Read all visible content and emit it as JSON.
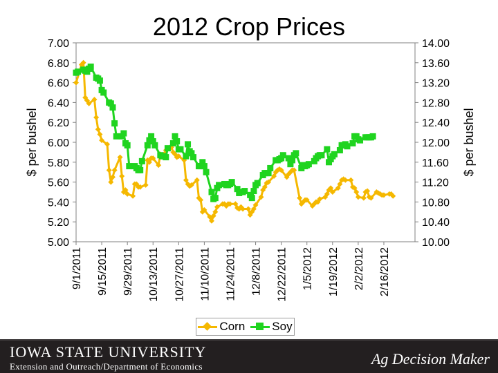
{
  "chart_data": {
    "type": "line",
    "title": "2012 Crop Prices",
    "ylabel_left": "$ per bushel",
    "ylabel_right": "$ per bushel",
    "ylim_left": [
      5.0,
      7.0
    ],
    "ylim_right": [
      10.0,
      14.0
    ],
    "yticks_left": [
      "7.00",
      "6.80",
      "6.60",
      "6.40",
      "6.20",
      "6.00",
      "5.80",
      "5.60",
      "5.40",
      "5.20",
      "5.00"
    ],
    "yticks_right": [
      "14.00",
      "13.60",
      "13.20",
      "12.80",
      "12.40",
      "12.00",
      "11.60",
      "11.20",
      "10.80",
      "10.40",
      "10.00"
    ],
    "x_tick_labels": [
      "9/1/2011",
      "9/15/2011",
      "9/29/2011",
      "10/13/2011",
      "10/27/2011",
      "11/10/2011",
      "11/24/2011",
      "12/8/2011",
      "12/22/2011",
      "1/5/2012",
      "1/19/2012",
      "2/2/2012",
      "2/16/2012"
    ],
    "x_range_days": [
      0,
      185
    ],
    "grid": false,
    "legend": "bottom",
    "series": [
      {
        "name": "Corn",
        "axis": "left",
        "color": "#f5b800",
        "marker": "diamond",
        "points": [
          [
            0,
            6.6
          ],
          [
            3,
            6.78
          ],
          [
            4,
            6.8
          ],
          [
            5,
            6.45
          ],
          [
            6,
            6.42
          ],
          [
            7,
            6.39
          ],
          [
            10,
            6.43
          ],
          [
            11,
            6.25
          ],
          [
            12,
            6.13
          ],
          [
            13,
            6.08
          ],
          [
            14,
            6.02
          ],
          [
            17,
            5.98
          ],
          [
            18,
            5.72
          ],
          [
            19,
            5.6
          ],
          [
            20,
            5.65
          ],
          [
            21,
            5.72
          ],
          [
            24,
            5.85
          ],
          [
            25,
            5.66
          ],
          [
            26,
            5.5
          ],
          [
            27,
            5.52
          ],
          [
            28,
            5.48
          ],
          [
            31,
            5.46
          ],
          [
            32,
            5.58
          ],
          [
            33,
            5.58
          ],
          [
            34,
            5.55
          ],
          [
            35,
            5.55
          ],
          [
            38,
            5.57
          ],
          [
            39,
            5.82
          ],
          [
            40,
            5.8
          ],
          [
            41,
            5.84
          ],
          [
            42,
            5.84
          ],
          [
            45,
            5.77
          ],
          [
            46,
            5.88
          ],
          [
            47,
            5.86
          ],
          [
            48,
            5.88
          ],
          [
            49,
            5.92
          ],
          [
            52,
            5.95
          ],
          [
            53,
            5.9
          ],
          [
            54,
            5.88
          ],
          [
            55,
            5.85
          ],
          [
            56,
            5.86
          ],
          [
            59,
            5.82
          ],
          [
            60,
            5.62
          ],
          [
            61,
            5.58
          ],
          [
            62,
            5.56
          ],
          [
            63,
            5.57
          ],
          [
            66,
            5.62
          ],
          [
            67,
            5.44
          ],
          [
            68,
            5.42
          ],
          [
            69,
            5.3
          ],
          [
            70,
            5.32
          ],
          [
            73,
            5.25
          ],
          [
            74,
            5.21
          ],
          [
            75,
            5.26
          ],
          [
            76,
            5.3
          ],
          [
            77,
            5.35
          ],
          [
            80,
            5.38
          ],
          [
            81,
            5.38
          ],
          [
            82,
            5.36
          ],
          [
            83,
            5.38
          ],
          [
            84,
            5.38
          ],
          [
            87,
            5.38
          ],
          [
            88,
            5.34
          ],
          [
            89,
            5.33
          ],
          [
            90,
            5.35
          ],
          [
            91,
            5.33
          ],
          [
            94,
            5.33
          ],
          [
            95,
            5.27
          ],
          [
            96,
            5.3
          ],
          [
            97,
            5.33
          ],
          [
            98,
            5.37
          ],
          [
            101,
            5.45
          ],
          [
            102,
            5.52
          ],
          [
            103,
            5.55
          ],
          [
            104,
            5.59
          ],
          [
            105,
            5.6
          ],
          [
            108,
            5.66
          ],
          [
            109,
            5.7
          ],
          [
            110,
            5.72
          ],
          [
            111,
            5.73
          ],
          [
            112,
            5.72
          ],
          [
            115,
            5.65
          ],
          [
            116,
            5.68
          ],
          [
            117,
            5.7
          ],
          [
            118,
            5.72
          ],
          [
            119,
            5.72
          ],
          [
            122,
            5.44
          ],
          [
            123,
            5.38
          ],
          [
            124,
            5.4
          ],
          [
            125,
            5.42
          ],
          [
            126,
            5.42
          ],
          [
            129,
            5.36
          ],
          [
            130,
            5.38
          ],
          [
            131,
            5.4
          ],
          [
            132,
            5.4
          ],
          [
            133,
            5.43
          ],
          [
            136,
            5.45
          ],
          [
            137,
            5.48
          ],
          [
            138,
            5.52
          ],
          [
            139,
            5.54
          ],
          [
            140,
            5.5
          ],
          [
            143,
            5.54
          ],
          [
            144,
            5.58
          ],
          [
            145,
            5.62
          ],
          [
            146,
            5.63
          ],
          [
            147,
            5.62
          ],
          [
            150,
            5.62
          ],
          [
            151,
            5.55
          ],
          [
            152,
            5.54
          ],
          [
            153,
            5.5
          ],
          [
            154,
            5.45
          ],
          [
            157,
            5.44
          ],
          [
            158,
            5.5
          ],
          [
            159,
            5.51
          ],
          [
            160,
            5.45
          ],
          [
            161,
            5.44
          ],
          [
            164,
            5.5
          ],
          [
            165,
            5.49
          ],
          [
            166,
            5.48
          ],
          [
            167,
            5.47
          ],
          [
            168,
            5.47
          ],
          [
            171,
            5.48
          ],
          [
            172,
            5.48
          ],
          [
            173,
            5.46
          ]
        ]
      },
      {
        "name": "Soy",
        "axis": "right",
        "color": "#1fd41f",
        "marker": "square",
        "points": [
          [
            0,
            13.4
          ],
          [
            1,
            13.42
          ],
          [
            4,
            13.46
          ],
          [
            5,
            13.44
          ],
          [
            6,
            13.42
          ],
          [
            7,
            13.48
          ],
          [
            8,
            13.52
          ],
          [
            11,
            13.3
          ],
          [
            12,
            13.28
          ],
          [
            13,
            13.24
          ],
          [
            14,
            13.05
          ],
          [
            15,
            13.0
          ],
          [
            18,
            12.8
          ],
          [
            19,
            12.78
          ],
          [
            20,
            12.7
          ],
          [
            21,
            12.38
          ],
          [
            22,
            12.12
          ],
          [
            25,
            12.12
          ],
          [
            26,
            12.18
          ],
          [
            27,
            11.98
          ],
          [
            28,
            11.94
          ],
          [
            29,
            11.52
          ],
          [
            32,
            11.52
          ],
          [
            33,
            11.48
          ],
          [
            34,
            11.44
          ],
          [
            35,
            11.44
          ],
          [
            36,
            11.62
          ],
          [
            39,
            11.94
          ],
          [
            40,
            12.04
          ],
          [
            41,
            12.12
          ],
          [
            42,
            12.02
          ],
          [
            43,
            11.94
          ],
          [
            46,
            11.74
          ],
          [
            47,
            11.72
          ],
          [
            48,
            11.72
          ],
          [
            49,
            11.7
          ],
          [
            50,
            11.88
          ],
          [
            53,
            11.98
          ],
          [
            54,
            12.12
          ],
          [
            55,
            12.02
          ],
          [
            56,
            11.86
          ],
          [
            57,
            11.86
          ],
          [
            60,
            11.72
          ],
          [
            61,
            11.96
          ],
          [
            62,
            11.82
          ],
          [
            63,
            11.78
          ],
          [
            64,
            11.7
          ],
          [
            67,
            11.52
          ],
          [
            68,
            11.52
          ],
          [
            69,
            11.6
          ],
          [
            70,
            11.52
          ],
          [
            71,
            11.4
          ],
          [
            74,
            11.0
          ],
          [
            75,
            10.86
          ],
          [
            76,
            10.88
          ],
          [
            77,
            11.08
          ],
          [
            78,
            11.14
          ],
          [
            81,
            11.16
          ],
          [
            82,
            11.14
          ],
          [
            83,
            11.14
          ],
          [
            84,
            11.16
          ],
          [
            85,
            11.2
          ],
          [
            88,
            11.06
          ],
          [
            89,
            10.98
          ],
          [
            90,
            11.0
          ],
          [
            91,
            11.0
          ],
          [
            92,
            11.02
          ],
          [
            95,
            10.94
          ],
          [
            96,
            10.88
          ],
          [
            97,
            11.02
          ],
          [
            98,
            11.14
          ],
          [
            99,
            11.18
          ],
          [
            102,
            11.34
          ],
          [
            103,
            11.38
          ],
          [
            104,
            11.38
          ],
          [
            105,
            11.38
          ],
          [
            106,
            11.48
          ],
          [
            109,
            11.64
          ],
          [
            110,
            11.64
          ],
          [
            111,
            11.66
          ],
          [
            112,
            11.68
          ],
          [
            113,
            11.74
          ],
          [
            116,
            11.68
          ],
          [
            117,
            11.56
          ],
          [
            118,
            11.64
          ],
          [
            119,
            11.74
          ],
          [
            120,
            11.78
          ],
          [
            123,
            11.48
          ],
          [
            124,
            11.54
          ],
          [
            125,
            11.52
          ],
          [
            126,
            11.54
          ],
          [
            127,
            11.56
          ],
          [
            130,
            11.62
          ],
          [
            131,
            11.68
          ],
          [
            132,
            11.72
          ],
          [
            133,
            11.74
          ],
          [
            134,
            11.74
          ],
          [
            137,
            11.86
          ],
          [
            138,
            11.6
          ],
          [
            139,
            11.66
          ],
          [
            140,
            11.72
          ],
          [
            141,
            11.76
          ],
          [
            144,
            11.84
          ],
          [
            145,
            11.94
          ],
          [
            146,
            11.94
          ],
          [
            147,
            11.96
          ],
          [
            148,
            11.92
          ],
          [
            151,
            11.98
          ],
          [
            152,
            12.12
          ],
          [
            153,
            12.12
          ],
          [
            154,
            12.06
          ],
          [
            155,
            12.04
          ],
          [
            158,
            12.1
          ],
          [
            159,
            12.1
          ],
          [
            160,
            12.1
          ],
          [
            161,
            12.1
          ],
          [
            162,
            12.12
          ]
        ]
      }
    ]
  },
  "footer": {
    "university": "IOWA STATE UNIVERSITY",
    "department": "Extension and Outreach/Department of Economics",
    "brand": "Ag Decision Maker"
  }
}
